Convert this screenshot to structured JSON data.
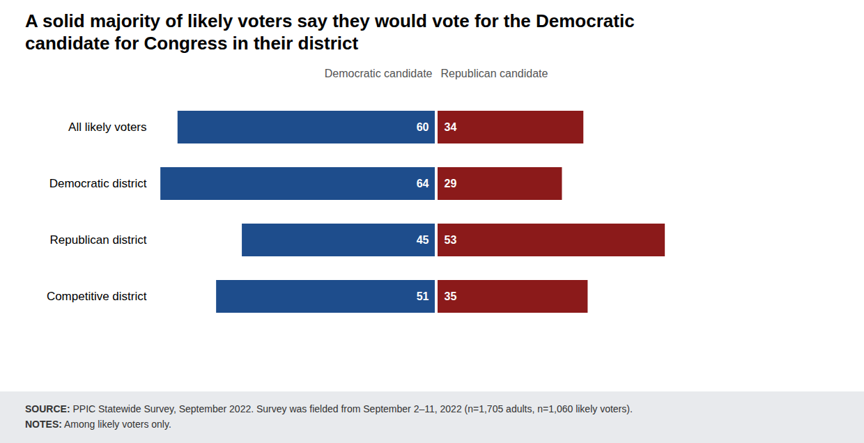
{
  "chart_data": {
    "type": "bar",
    "orientation": "horizontal",
    "title": "A solid majority of likely voters say they would vote for the Democratic candidate for Congress in their district",
    "categories": [
      "All likely voters",
      "Democratic district",
      "Republican district",
      "Competitive district"
    ],
    "series": [
      {
        "name": "Democratic candidate",
        "color": "#1e4d8c",
        "values": [
          60,
          64,
          45,
          51
        ]
      },
      {
        "name": "Republican candidate",
        "color": "#8b1a1a",
        "values": [
          34,
          29,
          53,
          35
        ]
      }
    ],
    "xlim": [
      0,
      65
    ],
    "grid": false,
    "data_labels": true,
    "tick_labels": "y",
    "annotations": [
      "SOURCE: PPIC Statewide Survey, September 2022. Survey was fielded from September 2–11, 2022 (n=1,705 adults, n=1,060 likely voters).",
      "NOTES: Among likely voters only."
    ]
  }
}
